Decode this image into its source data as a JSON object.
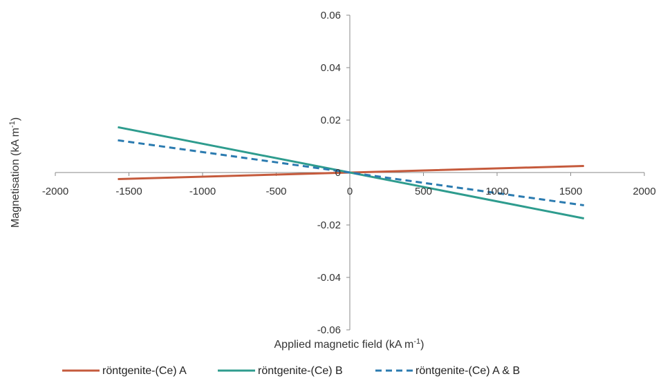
{
  "chart_data": {
    "type": "line",
    "title": "",
    "xlabel": "Applied magnetic field (kA m",
    "xlabel_sup": "-1",
    "xlabel_end": ")",
    "ylabel": "Magnetisation (kA m",
    "ylabel_sup": "-1",
    "ylabel_end": ")",
    "xlim": [
      -2000,
      2000
    ],
    "ylim": [
      -0.06,
      0.06
    ],
    "x_ticks": [
      -2000,
      -1500,
      -1000,
      -500,
      0,
      500,
      1000,
      1500,
      2000
    ],
    "y_ticks": [
      -0.06,
      -0.04,
      -0.02,
      0,
      0.02,
      0.04,
      0.06
    ],
    "x_tick_labels": [
      "-2000",
      "-1500",
      "-1000",
      "-500",
      "0",
      "500",
      "1000",
      "1500",
      "2000"
    ],
    "y_tick_labels": [
      "-0.06",
      "-0.04",
      "-0.02",
      "0",
      "0.02",
      "0.04",
      "0.06"
    ],
    "grid": false,
    "legend": "bottom",
    "series": [
      {
        "name": "röntgenite-(Ce) A",
        "x": [
          -1575,
          0,
          1590
        ],
        "y": [
          -0.0025,
          0,
          0.0025
        ],
        "color": "#C55A3C",
        "dash": "solid"
      },
      {
        "name": "röntgenite-(Ce) B",
        "x": [
          -1575,
          0,
          1590
        ],
        "y": [
          0.0173,
          0,
          -0.0175
        ],
        "color": "#2E9C8E",
        "dash": "solid"
      },
      {
        "name": "röntgenite-(Ce) A & B",
        "x": [
          -1575,
          0,
          1590
        ],
        "y": [
          0.0123,
          0,
          -0.0125
        ],
        "color": "#2B7BB0",
        "dash": "dashed"
      }
    ]
  }
}
